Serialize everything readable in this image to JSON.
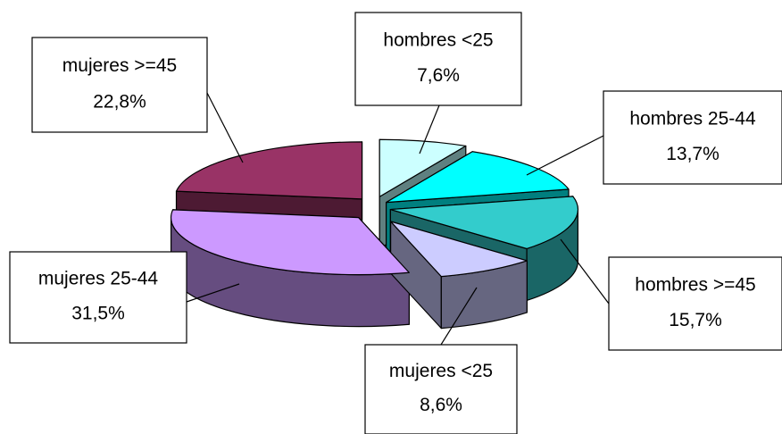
{
  "chart_data": {
    "type": "pie",
    "style": "3d-exploded",
    "title": "",
    "slices": [
      {
        "name": "hombres <25",
        "value": 7.6,
        "label": "7,6%",
        "color": "#ccffff",
        "side_color": "#5f8080"
      },
      {
        "name": "hombres 25-44",
        "value": 13.7,
        "label": "13,7%",
        "color": "#00ffff",
        "side_color": "#007f7f"
      },
      {
        "name": "hombres >=45",
        "value": 15.7,
        "label": "15,7%",
        "color": "#33cccc",
        "side_color": "#1a6666"
      },
      {
        "name": "mujeres <25",
        "value": 8.6,
        "label": "8,6%",
        "color": "#ccccff",
        "side_color": "#666680"
      },
      {
        "name": "mujeres 25-44",
        "value": 31.5,
        "label": "31,5%",
        "color": "#cc99ff",
        "side_color": "#664d80"
      },
      {
        "name": "mujeres >=45",
        "value": 22.8,
        "label": "22,8%",
        "color": "#993366",
        "side_color": "#4d1a33"
      }
    ],
    "legend": "none"
  }
}
